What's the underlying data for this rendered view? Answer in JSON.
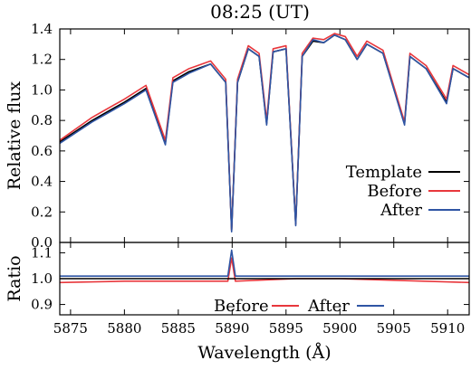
{
  "chart_data": [
    {
      "type": "line",
      "title": "08:25 (UT)",
      "xlabel": "",
      "ylabel": "Relative flux",
      "xlim": [
        5874,
        5912
      ],
      "ylim": [
        0.0,
        1.4
      ],
      "xticks": [
        5875,
        5880,
        5885,
        5890,
        5895,
        5900,
        5905,
        5910
      ],
      "yticks": [
        0.0,
        0.2,
        0.4,
        0.6,
        0.8,
        1.0,
        1.2,
        1.4
      ],
      "ytick_labels": [
        "0.0",
        "0.2",
        "0.4",
        "0.6",
        "0.8",
        "1.0",
        "1.2",
        "1.4"
      ],
      "grid": false,
      "legend_position": "bottom-right",
      "series": [
        {
          "name": "Template",
          "color": "#000000",
          "x": [
            5874,
            5877,
            5880,
            5882,
            5883.8,
            5884.5,
            5886,
            5888,
            5889.4,
            5889.95,
            5890.5,
            5891.5,
            5892.5,
            5893.2,
            5893.8,
            5895,
            5895.9,
            5896.5,
            5897.5,
            5898.5,
            5899.5,
            5900.5,
            5901.6,
            5902.5,
            5904,
            5906,
            5906.5,
            5908,
            5909.9,
            5910.5,
            5912
          ],
          "y": [
            0.66,
            0.8,
            0.92,
            1.01,
            0.65,
            1.06,
            1.12,
            1.17,
            1.05,
            0.08,
            1.05,
            1.27,
            1.22,
            0.78,
            1.25,
            1.27,
            0.12,
            1.22,
            1.32,
            1.31,
            1.36,
            1.33,
            1.2,
            1.3,
            1.24,
            0.78,
            1.22,
            1.14,
            0.92,
            1.14,
            1.08
          ]
        },
        {
          "name": "Before",
          "color": "#e8373c",
          "x": [
            5874,
            5877,
            5880,
            5882,
            5883.8,
            5884.5,
            5886,
            5888,
            5889.4,
            5889.95,
            5890.5,
            5891.5,
            5892.5,
            5893.2,
            5893.8,
            5895,
            5895.9,
            5896.5,
            5897.5,
            5898.5,
            5899.5,
            5900.5,
            5901.6,
            5902.5,
            5904,
            5906,
            5906.5,
            5908,
            5909.9,
            5910.5,
            5912
          ],
          "y": [
            0.67,
            0.82,
            0.94,
            1.03,
            0.67,
            1.08,
            1.14,
            1.19,
            1.07,
            0.08,
            1.07,
            1.29,
            1.24,
            0.8,
            1.27,
            1.29,
            0.12,
            1.24,
            1.34,
            1.33,
            1.37,
            1.35,
            1.22,
            1.32,
            1.26,
            0.79,
            1.24,
            1.16,
            0.94,
            1.16,
            1.1
          ]
        },
        {
          "name": "After",
          "color": "#2f55a4",
          "x": [
            5874,
            5877,
            5880,
            5882,
            5883.8,
            5884.5,
            5886,
            5888,
            5889.4,
            5889.95,
            5890.5,
            5891.5,
            5892.5,
            5893.2,
            5893.8,
            5895,
            5895.9,
            5896.5,
            5897.5,
            5898.5,
            5899.5,
            5900.5,
            5901.6,
            5902.5,
            5904,
            5906,
            5906.5,
            5908,
            5909.9,
            5910.5,
            5912
          ],
          "y": [
            0.65,
            0.79,
            0.91,
            1.0,
            0.64,
            1.05,
            1.11,
            1.17,
            1.05,
            0.07,
            1.05,
            1.27,
            1.22,
            0.77,
            1.25,
            1.27,
            0.11,
            1.22,
            1.33,
            1.31,
            1.36,
            1.33,
            1.2,
            1.3,
            1.24,
            0.77,
            1.22,
            1.14,
            0.91,
            1.14,
            1.08
          ]
        }
      ]
    },
    {
      "type": "line",
      "title": "",
      "xlabel": "Wavelength (Å)",
      "ylabel": "Ratio",
      "xlim": [
        5874,
        5912
      ],
      "ylim": [
        0.86,
        1.14
      ],
      "xticks": [
        5875,
        5880,
        5885,
        5890,
        5895,
        5900,
        5905,
        5910
      ],
      "yticks": [
        0.9,
        1.0,
        1.1
      ],
      "ytick_labels": [
        "0.9",
        "1.0",
        "1.1"
      ],
      "grid": false,
      "legend_position": "bottom-right, horizontal",
      "series": [
        {
          "name": "Before",
          "color": "#e8373c",
          "x": [
            5874,
            5880,
            5889.6,
            5889.95,
            5890.3,
            5896,
            5900,
            5912
          ],
          "y": [
            0.985,
            0.99,
            0.99,
            1.08,
            0.99,
            1.0,
            1.0,
            0.985
          ]
        },
        {
          "name": "After",
          "color": "#2f55a4",
          "x": [
            5874,
            5880,
            5889.6,
            5889.95,
            5890.3,
            5896,
            5900,
            5912
          ],
          "y": [
            1.01,
            1.01,
            1.01,
            1.11,
            1.01,
            1.01,
            1.01,
            1.01
          ]
        },
        {
          "name": "",
          "color": "#000000",
          "x": [
            5874,
            5912
          ],
          "y": [
            1.0,
            1.0
          ]
        }
      ]
    }
  ]
}
